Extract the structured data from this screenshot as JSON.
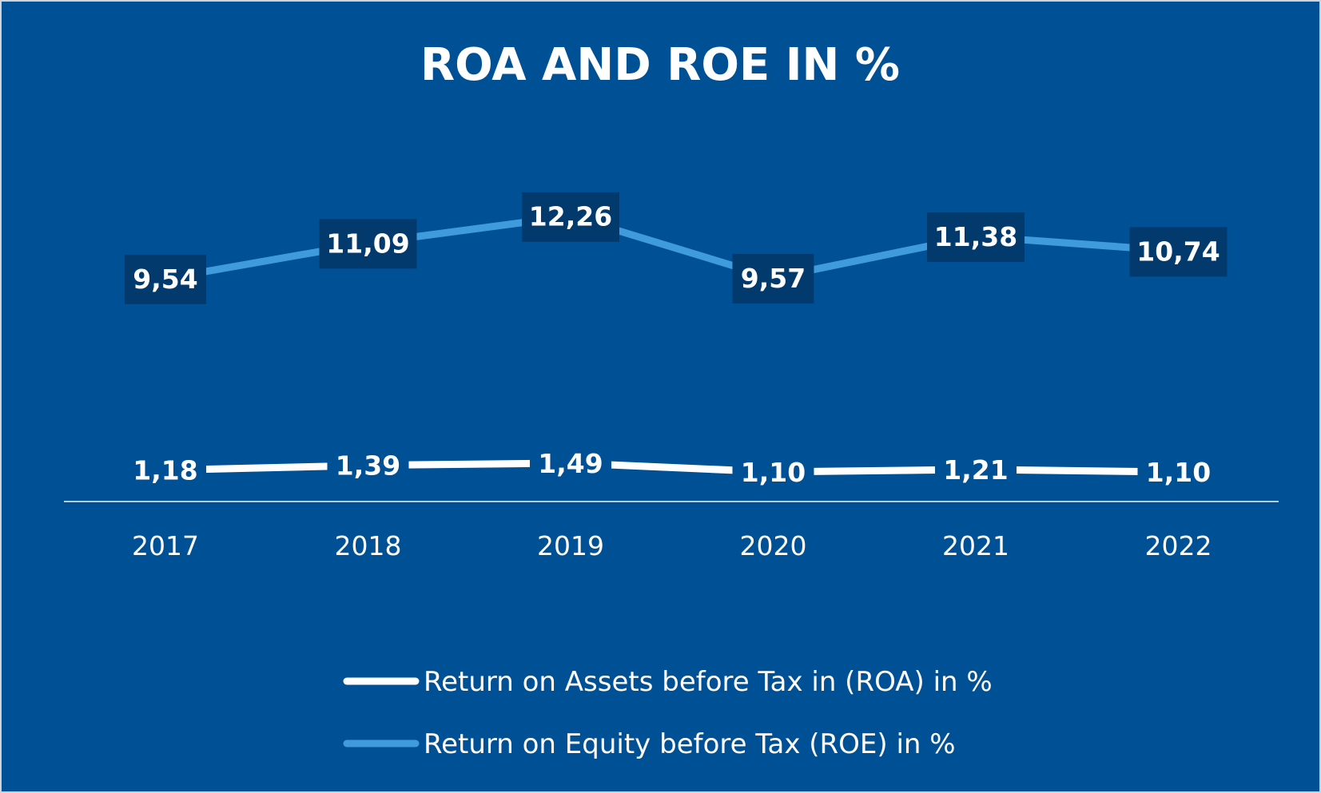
{
  "chart_data": {
    "type": "line",
    "title": "ROA AND ROE IN %",
    "categories": [
      "2017",
      "2018",
      "2019",
      "2020",
      "2021",
      "2022"
    ],
    "series": [
      {
        "name": "Return on Assets before Tax in (ROA) in %",
        "values": [
          1.18,
          1.39,
          1.49,
          1.1,
          1.21,
          1.1
        ],
        "labels": [
          "1,18",
          "1,39",
          "1,49",
          "1,10",
          "1,21",
          "1,10"
        ],
        "color": "#ffffff"
      },
      {
        "name": "Return on Equity before Tax (ROE) in %",
        "values": [
          9.54,
          11.09,
          12.26,
          9.57,
          11.38,
          10.74
        ],
        "labels": [
          "9,54",
          "11,09",
          "12,26",
          "9,57",
          "11,38",
          "10,74"
        ],
        "color": "#3f9bdc"
      }
    ],
    "legend_position": "bottom",
    "grid": false,
    "y_axis_visible": false
  },
  "colors": {
    "background": "#005096",
    "label_box": "#033a6e",
    "axis_line": "#b8cde6"
  }
}
